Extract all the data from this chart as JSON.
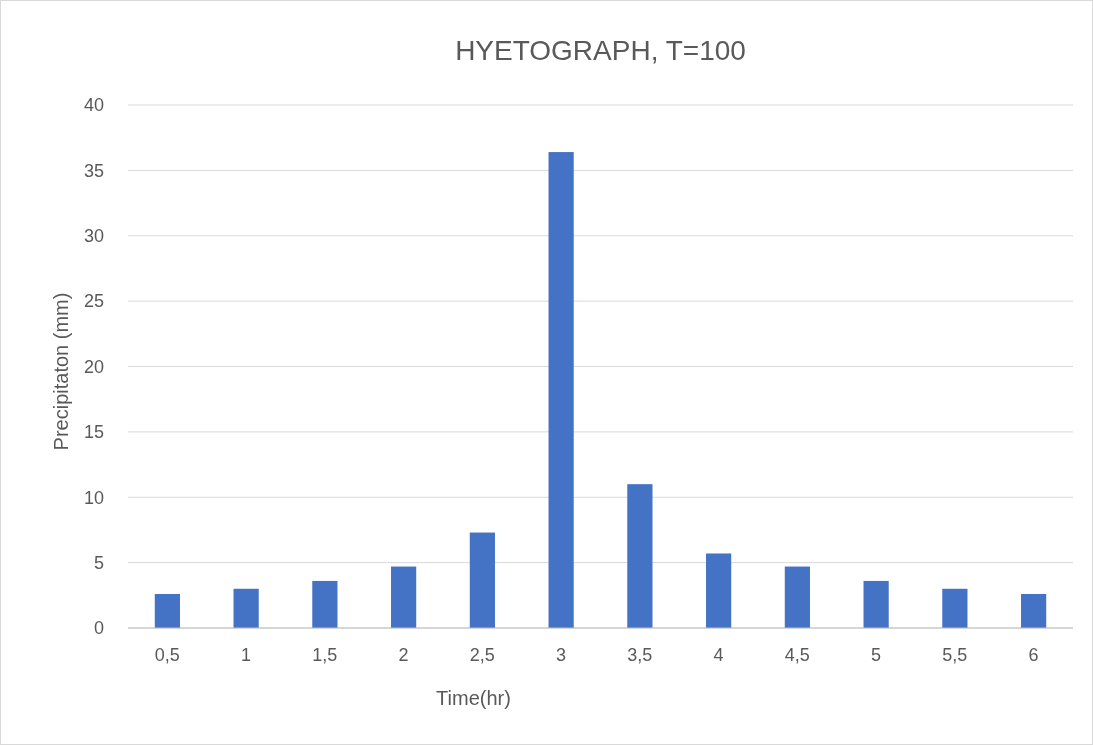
{
  "chart_data": {
    "type": "bar",
    "title": "HYETOGRAPH, T=100",
    "xlabel": "Time(hr)",
    "ylabel": "Precipitaton (mm)",
    "categories": [
      "0,5",
      "1",
      "1,5",
      "2",
      "2,5",
      "3",
      "3,5",
      "4",
      "4,5",
      "5",
      "5,5",
      "6"
    ],
    "values": [
      2.6,
      3.0,
      3.6,
      4.7,
      7.3,
      36.4,
      11.0,
      5.7,
      4.7,
      3.6,
      3.0,
      2.6
    ],
    "color": "#4472c4",
    "ylim": [
      0,
      40
    ],
    "yticks": [
      0,
      5,
      10,
      15,
      20,
      25,
      30,
      35,
      40
    ],
    "grid": "y"
  }
}
